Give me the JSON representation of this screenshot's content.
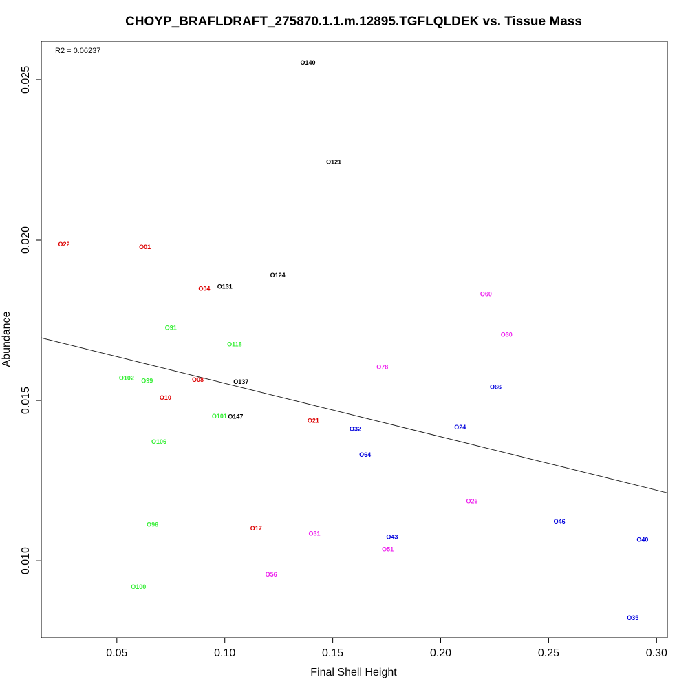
{
  "chart_data": {
    "type": "scatter",
    "title": "CHOYP_BRAFLDRAFT_275870.1.1.m.12895.TGFLQLDEK vs. Tissue Mass",
    "xlabel": "Final Shell Height",
    "ylabel": "Abundance",
    "annotation": "R2 = 0.06237",
    "xlim": [
      0.015,
      0.305
    ],
    "ylim": [
      0.0076,
      0.0262
    ],
    "x_ticks": [
      0.05,
      0.1,
      0.15,
      0.2,
      0.25,
      0.3
    ],
    "x_tick_labels": [
      "0.05",
      "0.10",
      "0.15",
      "0.20",
      "0.25",
      "0.30"
    ],
    "y_ticks": [
      0.01,
      0.015,
      0.02,
      0.025
    ],
    "y_tick_labels": [
      "0.010",
      "0.015",
      "0.020",
      "0.025"
    ],
    "regression_line": {
      "x": [
        0.015,
        0.305
      ],
      "y": [
        0.01695,
        0.01212
      ]
    },
    "points": [
      {
        "label": "O140",
        "x": 0.1385,
        "y": 0.02553,
        "color": "#000000"
      },
      {
        "label": "O121",
        "x": 0.1505,
        "y": 0.02244,
        "color": "#000000"
      },
      {
        "label": "O124",
        "x": 0.1245,
        "y": 0.01891,
        "color": "#000000"
      },
      {
        "label": "O131",
        "x": 0.1,
        "y": 0.01855,
        "color": "#000000"
      },
      {
        "label": "O137",
        "x": 0.1075,
        "y": 0.01558,
        "color": "#000000"
      },
      {
        "label": "O147",
        "x": 0.105,
        "y": 0.0145,
        "color": "#000000"
      },
      {
        "label": "O22",
        "x": 0.0255,
        "y": 0.01987,
        "color": "#dd0000"
      },
      {
        "label": "O01",
        "x": 0.063,
        "y": 0.01979,
        "color": "#dd0000"
      },
      {
        "label": "O04",
        "x": 0.0905,
        "y": 0.01849,
        "color": "#dd0000"
      },
      {
        "label": "O08",
        "x": 0.0875,
        "y": 0.01564,
        "color": "#dd0000"
      },
      {
        "label": "O10",
        "x": 0.0725,
        "y": 0.01509,
        "color": "#dd0000"
      },
      {
        "label": "O21",
        "x": 0.141,
        "y": 0.01437,
        "color": "#dd0000"
      },
      {
        "label": "O17",
        "x": 0.1145,
        "y": 0.01101,
        "color": "#dd0000"
      },
      {
        "label": "O91",
        "x": 0.075,
        "y": 0.01727,
        "color": "#33ee33"
      },
      {
        "label": "O118",
        "x": 0.1045,
        "y": 0.01675,
        "color": "#33ee33"
      },
      {
        "label": "O102",
        "x": 0.0545,
        "y": 0.0157,
        "color": "#33ee33"
      },
      {
        "label": "O99",
        "x": 0.064,
        "y": 0.01561,
        "color": "#33ee33"
      },
      {
        "label": "O101",
        "x": 0.0975,
        "y": 0.01451,
        "color": "#33ee33"
      },
      {
        "label": "O106",
        "x": 0.0695,
        "y": 0.01371,
        "color": "#33ee33"
      },
      {
        "label": "O96",
        "x": 0.0665,
        "y": 0.01113,
        "color": "#33ee33"
      },
      {
        "label": "O100",
        "x": 0.06,
        "y": 0.00919,
        "color": "#33ee33"
      },
      {
        "label": "O60",
        "x": 0.221,
        "y": 0.01832,
        "color": "#ee22ee"
      },
      {
        "label": "O30",
        "x": 0.2305,
        "y": 0.01705,
        "color": "#ee22ee"
      },
      {
        "label": "O78",
        "x": 0.173,
        "y": 0.01604,
        "color": "#ee22ee"
      },
      {
        "label": "O26",
        "x": 0.2145,
        "y": 0.01186,
        "color": "#ee22ee"
      },
      {
        "label": "O31",
        "x": 0.1415,
        "y": 0.01085,
        "color": "#ee22ee"
      },
      {
        "label": "O51",
        "x": 0.1755,
        "y": 0.01036,
        "color": "#ee22ee"
      },
      {
        "label": "O56",
        "x": 0.1215,
        "y": 0.00957,
        "color": "#ee22ee"
      },
      {
        "label": "O66",
        "x": 0.2255,
        "y": 0.01542,
        "color": "#0000dd"
      },
      {
        "label": "O24",
        "x": 0.209,
        "y": 0.01417,
        "color": "#0000dd"
      },
      {
        "label": "O32",
        "x": 0.1605,
        "y": 0.01411,
        "color": "#0000dd"
      },
      {
        "label": "O64",
        "x": 0.165,
        "y": 0.01331,
        "color": "#0000dd"
      },
      {
        "label": "O43",
        "x": 0.1775,
        "y": 0.01074,
        "color": "#0000dd"
      },
      {
        "label": "O46",
        "x": 0.255,
        "y": 0.01123,
        "color": "#0000dd"
      },
      {
        "label": "O40",
        "x": 0.2935,
        "y": 0.01066,
        "color": "#0000dd"
      },
      {
        "label": "O35",
        "x": 0.289,
        "y": 0.00822,
        "color": "#0000dd"
      }
    ]
  }
}
